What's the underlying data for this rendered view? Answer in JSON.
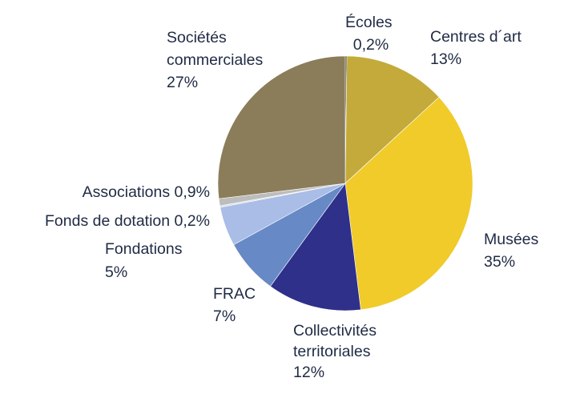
{
  "chart_data": {
    "type": "pie",
    "slices": [
      {
        "label": "Écoles",
        "value": 0.2,
        "value_text": "0,2%",
        "color": "#3a3a28"
      },
      {
        "label": "Centres d´art",
        "value": 13,
        "value_text": "13%",
        "color": "#c3aa3a"
      },
      {
        "label": "Musées",
        "value": 35,
        "value_text": "35%",
        "color": "#f0cb2a"
      },
      {
        "label": "Collectivités territoriales",
        "value": 12,
        "value_text": "12%",
        "color": "#2f308a"
      },
      {
        "label": "FRAC",
        "value": 7,
        "value_text": "7%",
        "color": "#6789c6"
      },
      {
        "label": "Fondations",
        "value": 5,
        "value_text": "5%",
        "color": "#a9bde6"
      },
      {
        "label": "Fonds de dotation",
        "value": 0.2,
        "value_text": "0,2%",
        "color": "#d6dcea"
      },
      {
        "label": "Associations",
        "value": 0.9,
        "value_text": "0,9%",
        "color": "#bdbdbd"
      },
      {
        "label": "Sociétés commerciales",
        "value": 27,
        "value_text": "27%",
        "color": "#8b7d5a"
      }
    ]
  }
}
